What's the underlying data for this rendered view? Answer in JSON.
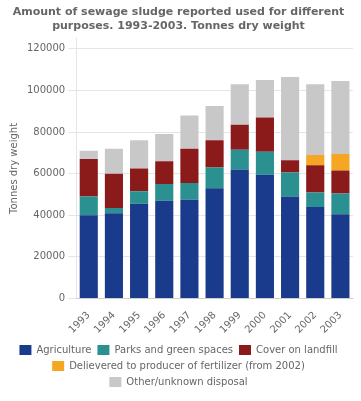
{
  "chart_data": {
    "type": "bar",
    "title": [
      "Amount of sewage sludge reported used for different",
      "purposes. 1993-2003. Tonnes dry weight"
    ],
    "y_label": "Tonnes dry weight",
    "categories": [
      "1993",
      "1994",
      "1995",
      "1996",
      "1997",
      "1998",
      "1999",
      "2000",
      "2001",
      "2002",
      "2003"
    ],
    "series": [
      {
        "name": "Agriculture",
        "color": "#1a3a8c",
        "values": [
          40000,
          41000,
          45500,
          47000,
          47500,
          53000,
          62000,
          59500,
          49000,
          44000,
          40500
        ]
      },
      {
        "name": "Parks and green spaces",
        "color": "#2a9090",
        "values": [
          9000,
          2500,
          6000,
          8000,
          8000,
          10000,
          9500,
          11000,
          11500,
          7000,
          10000
        ]
      },
      {
        "name": "Cover on landfill",
        "color": "#8b1a1a",
        "values": [
          18000,
          16500,
          11000,
          11000,
          16500,
          13000,
          12000,
          16500,
          6000,
          13000,
          11000
        ]
      },
      {
        "name": "Delievered to producer of fertilizer (from 2002)",
        "color": "#f5a623",
        "values": [
          0,
          0,
          0,
          0,
          0,
          0,
          0,
          0,
          0,
          5000,
          8000
        ]
      },
      {
        "name": "Other/unknown disposal",
        "color": "#c8c8c8",
        "values": [
          4000,
          12000,
          13500,
          13000,
          16000,
          16500,
          19500,
          18000,
          40000,
          34000,
          35000
        ]
      }
    ],
    "stacked": true,
    "ylim": [
      0,
      125000
    ],
    "yticks": [
      0,
      20000,
      40000,
      60000,
      80000,
      100000,
      120000
    ],
    "grid": true,
    "legend": "bottom"
  }
}
